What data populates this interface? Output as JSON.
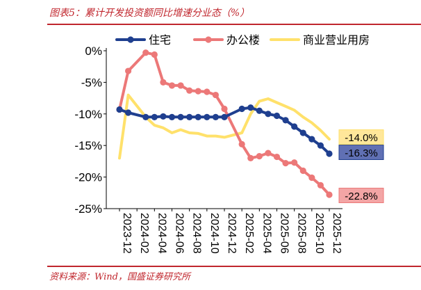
{
  "title": "图表5：累计开发投资额同比增速分业态（%）",
  "source": "资料来源：Wind，国盛证券研究所",
  "chart_data": {
    "type": "line",
    "x": [
      "2023-12",
      "2024-01",
      "2024-02",
      "2024-03",
      "2024-04",
      "2024-05",
      "2024-06",
      "2024-07",
      "2024-08",
      "2024-09",
      "2024-10",
      "2024-11",
      "2024-12",
      "2025-01",
      "2025-02",
      "2025-03",
      "2025-04",
      "2025-05",
      "2025-06",
      "2025-07",
      "2025-08",
      "2025-09",
      "2025-10",
      "2025-11",
      "2025-12"
    ],
    "x_tick_labels": [
      "2023-12",
      "2024-02",
      "2024-04",
      "2024-06",
      "2024-08",
      "2024-10",
      "2024-12",
      "2025-02",
      "2025-04",
      "2025-06",
      "2025-08",
      "2025-10",
      "2025-12"
    ],
    "y_tick_labels": [
      "0%",
      "-5%",
      "-10%",
      "-15%",
      "-20%",
      "-25%"
    ],
    "ylim": [
      -25,
      0
    ],
    "yticks": [
      0,
      -5,
      -10,
      -15,
      -20,
      -25
    ],
    "legend_position": "top",
    "series": [
      {
        "name": "住宅",
        "color": "#1f3f8f",
        "marker": true,
        "values": [
          -9.3,
          -9.8,
          null,
          -10.5,
          -10.5,
          -10.4,
          -10.5,
          -10.5,
          -10.5,
          -10.5,
          -10.5,
          -10.5,
          -10.5,
          null,
          -9.2,
          -9.0,
          -9.5,
          -10.0,
          -10.3,
          -11.0,
          -12.0,
          -13.0,
          -14.0,
          -15.0,
          -16.3
        ],
        "end_label": "-16.3%",
        "end_label_bg": "#6070b4"
      },
      {
        "name": "办公楼",
        "color": "#ec7878",
        "marker": true,
        "values": [
          -9.3,
          -3.2,
          null,
          -0.3,
          -0.6,
          -5.0,
          -5.5,
          -5.5,
          -6.3,
          -6.4,
          -6.5,
          -7.0,
          -9.2,
          null,
          -14.8,
          -17.0,
          -16.7,
          -16.2,
          -16.8,
          -17.8,
          -17.7,
          -19.0,
          -20.1,
          -21.3,
          -22.8
        ],
        "end_label": "-22.8%",
        "end_label_bg": "#f3a5a5"
      },
      {
        "name": "商业营业用房",
        "color": "#ffe16b",
        "marker": false,
        "values": [
          -17.0,
          -7.0,
          null,
          -10.5,
          -11.8,
          -12.2,
          -13.0,
          -12.5,
          -13.0,
          -13.1,
          -13.5,
          -13.5,
          -13.7,
          null,
          -13.0,
          -10.0,
          -8.0,
          -7.6,
          -8.2,
          -8.8,
          -9.4,
          -10.5,
          -11.4,
          -12.6,
          -14.0
        ],
        "end_label": "-14.0%",
        "end_label_bg": "#ffe79a"
      }
    ]
  }
}
